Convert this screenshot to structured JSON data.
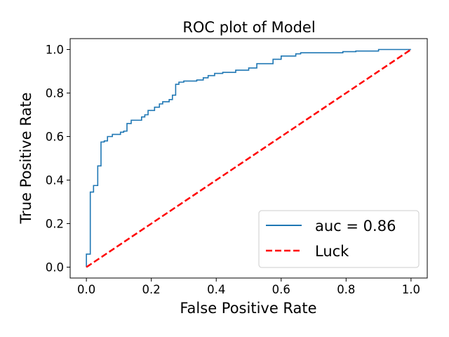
{
  "chart_data": {
    "type": "line",
    "title": "ROC plot of Model",
    "xlabel": "False Positive Rate",
    "ylabel": "True Positive Rate",
    "xlim": [
      -0.05,
      1.05
    ],
    "ylim": [
      -0.05,
      1.05
    ],
    "xticks": [
      0.0,
      0.2,
      0.4,
      0.6,
      0.8,
      1.0
    ],
    "yticks": [
      0.0,
      0.2,
      0.4,
      0.6,
      0.8,
      1.0
    ],
    "tick_labels": [
      "0.0",
      "0.2",
      "0.4",
      "0.6",
      "0.8",
      "1.0"
    ],
    "grid": false,
    "legend_position": "lower-right",
    "series": [
      {
        "name": "auc = 0.86",
        "color": "#1f77b4",
        "style": "solid",
        "step": true,
        "points": [
          [
            0.0,
            0.0
          ],
          [
            0.0,
            0.06
          ],
          [
            0.012,
            0.06
          ],
          [
            0.012,
            0.345
          ],
          [
            0.022,
            0.345
          ],
          [
            0.022,
            0.375
          ],
          [
            0.035,
            0.375
          ],
          [
            0.035,
            0.465
          ],
          [
            0.045,
            0.465
          ],
          [
            0.045,
            0.575
          ],
          [
            0.055,
            0.575
          ],
          [
            0.055,
            0.58
          ],
          [
            0.065,
            0.58
          ],
          [
            0.065,
            0.6
          ],
          [
            0.08,
            0.6
          ],
          [
            0.08,
            0.61
          ],
          [
            0.105,
            0.61
          ],
          [
            0.105,
            0.62
          ],
          [
            0.115,
            0.62
          ],
          [
            0.115,
            0.625
          ],
          [
            0.125,
            0.625
          ],
          [
            0.125,
            0.66
          ],
          [
            0.138,
            0.66
          ],
          [
            0.138,
            0.675
          ],
          [
            0.17,
            0.675
          ],
          [
            0.17,
            0.69
          ],
          [
            0.18,
            0.69
          ],
          [
            0.18,
            0.7
          ],
          [
            0.19,
            0.7
          ],
          [
            0.19,
            0.72
          ],
          [
            0.21,
            0.72
          ],
          [
            0.21,
            0.735
          ],
          [
            0.225,
            0.735
          ],
          [
            0.225,
            0.75
          ],
          [
            0.235,
            0.75
          ],
          [
            0.235,
            0.76
          ],
          [
            0.255,
            0.76
          ],
          [
            0.255,
            0.77
          ],
          [
            0.265,
            0.77
          ],
          [
            0.265,
            0.79
          ],
          [
            0.275,
            0.79
          ],
          [
            0.275,
            0.84
          ],
          [
            0.285,
            0.84
          ],
          [
            0.285,
            0.85
          ],
          [
            0.3,
            0.85
          ],
          [
            0.3,
            0.855
          ],
          [
            0.34,
            0.855
          ],
          [
            0.34,
            0.86
          ],
          [
            0.36,
            0.86
          ],
          [
            0.36,
            0.87
          ],
          [
            0.375,
            0.87
          ],
          [
            0.375,
            0.88
          ],
          [
            0.395,
            0.88
          ],
          [
            0.395,
            0.89
          ],
          [
            0.42,
            0.89
          ],
          [
            0.42,
            0.895
          ],
          [
            0.46,
            0.895
          ],
          [
            0.46,
            0.905
          ],
          [
            0.5,
            0.905
          ],
          [
            0.5,
            0.915
          ],
          [
            0.525,
            0.915
          ],
          [
            0.525,
            0.935
          ],
          [
            0.575,
            0.935
          ],
          [
            0.575,
            0.955
          ],
          [
            0.6,
            0.955
          ],
          [
            0.6,
            0.97
          ],
          [
            0.645,
            0.97
          ],
          [
            0.645,
            0.98
          ],
          [
            0.66,
            0.98
          ],
          [
            0.66,
            0.985
          ],
          [
            0.79,
            0.985
          ],
          [
            0.79,
            0.99
          ],
          [
            0.83,
            0.99
          ],
          [
            0.83,
            0.993
          ],
          [
            0.9,
            0.993
          ],
          [
            0.9,
            1.0
          ],
          [
            1.0,
            1.0
          ]
        ]
      },
      {
        "name": "Luck",
        "color": "#ff0000",
        "style": "dashed",
        "step": false,
        "points": [
          [
            0.0,
            0.0
          ],
          [
            1.0,
            1.0
          ]
        ]
      }
    ]
  }
}
